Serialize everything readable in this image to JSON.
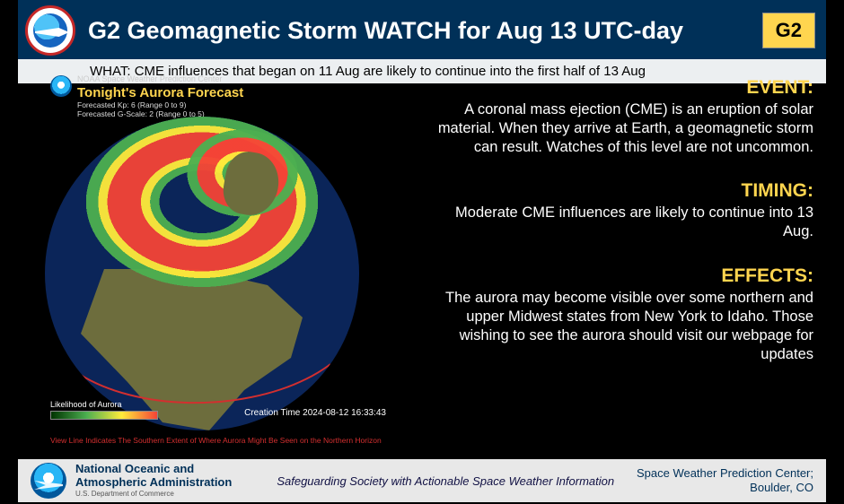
{
  "header": {
    "title": "G2 Geomagnetic Storm WATCH for Aug 13 UTC-day",
    "badge": "G2",
    "badge_bg": "#ffd54f",
    "subtitle": "WHAT: CME influences that began on 11 Aug are likely to continue into the first half of 13 Aug",
    "bg_color": "#003058"
  },
  "map": {
    "source_line": "NOAA Space Weather Prediction Center",
    "title": "Tonight's Aurora Forecast",
    "kp_line": "Forecasted Kp: 6 (Range 0 to 9)",
    "g_line": "Forecasted G-Scale: 2 (Range 0 to 5)",
    "legend_label": "Likelihood of Aurora",
    "creation_time": "Creation Time 2024-08-12 16:33:43",
    "view_note": "View Line Indicates The Southern Extent of Where Aurora Might Be Seen on the Northern Horizon",
    "globe_ocean_color": "#0b2559",
    "land_color": "#6d6d3d",
    "aurora_gradient": [
      "#4caf50",
      "#ffeb3b",
      "#f44336"
    ],
    "view_line_color": "#d32f2f"
  },
  "sections": {
    "event": {
      "head": "EVENT:",
      "body": "A coronal mass ejection (CME) is an eruption of solar material. When they arrive at Earth, a geomagnetic storm can result. Watches of this level are not uncommon."
    },
    "timing": {
      "head": "TIMING:",
      "body": "Moderate CME influences are likely to continue into 13 Aug."
    },
    "effects": {
      "head": "EFFECTS:",
      "body": "The aurora may become visible over some northern and upper Midwest states from New York to Idaho. Those wishing to see the aurora should visit our webpage for updates"
    },
    "head_color": "#ffd54f",
    "body_color": "#ffffff"
  },
  "footer": {
    "org_line1": "National Oceanic and",
    "org_line2": "Atmospheric Administration",
    "dept": "U.S. Department of Commerce",
    "tagline": "Safeguarding Society with Actionable Space Weather Information",
    "right_line1": "Space Weather Prediction Center;",
    "right_line2": "Boulder, CO",
    "bg_color": "#e8e8e8"
  }
}
